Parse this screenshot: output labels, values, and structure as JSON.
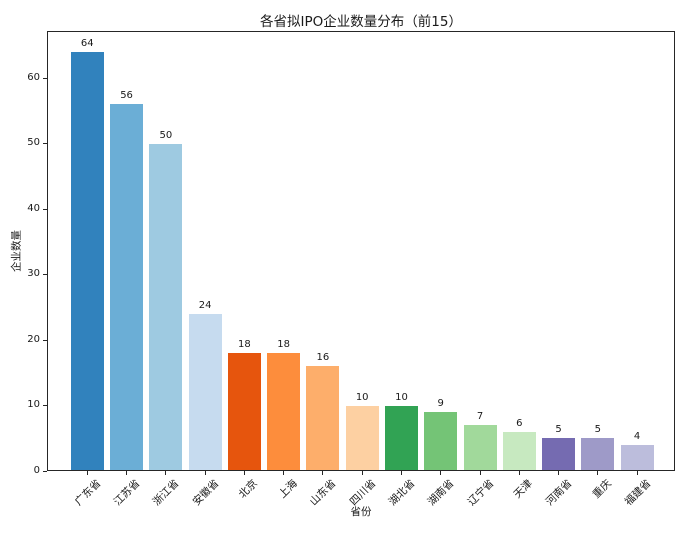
{
  "chart_data": {
    "type": "bar",
    "title": "各省拟IPO企业数量分布（前15）",
    "xlabel": "省份",
    "ylabel": "企业数量",
    "categories": [
      "广东省",
      "江苏省",
      "浙江省",
      "安徽省",
      "北京",
      "上海",
      "山东省",
      "四川省",
      "湖北省",
      "湖南省",
      "辽宁省",
      "天津",
      "河南省",
      "重庆",
      "福建省"
    ],
    "values": [
      64,
      56,
      50,
      24,
      18,
      18,
      16,
      10,
      10,
      9,
      7,
      6,
      5,
      5,
      4
    ],
    "bar_colors": [
      "#3182bd",
      "#6baed6",
      "#9ecae1",
      "#c6dbef",
      "#e6550d",
      "#fd8d3c",
      "#fdae6b",
      "#fdd0a2",
      "#31a354",
      "#74c476",
      "#a1d99b",
      "#c7e9c0",
      "#756bb1",
      "#9e9ac8",
      "#bcbddc"
    ],
    "value_labels_shown": true,
    "yticks": [
      0,
      10,
      20,
      30,
      40,
      50,
      60
    ],
    "ylim": [
      0,
      67.2
    ],
    "grid": false,
    "legend": null,
    "axis_color": "#262626",
    "text_color": "#1a1a1a",
    "background_color": "#ffffff"
  }
}
